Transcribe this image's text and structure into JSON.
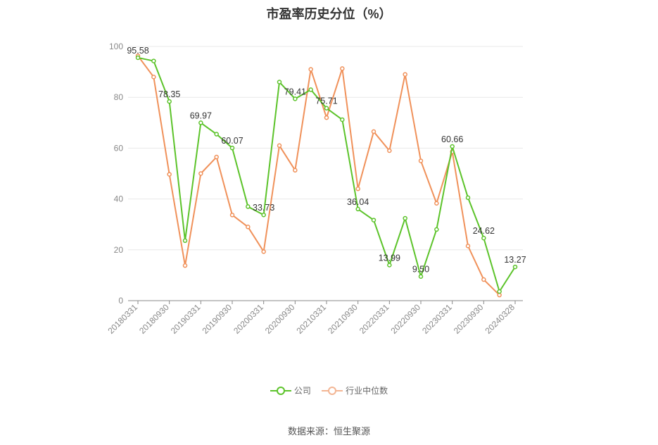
{
  "chart_data": {
    "type": "line",
    "title": "市盈率历史分位（%）",
    "ylim": [
      0,
      100
    ],
    "yticks": [
      0,
      20,
      40,
      60,
      80,
      100
    ],
    "x": [
      "20180331",
      "20180630",
      "20180930",
      "20181231",
      "20190331",
      "20190630",
      "20190930",
      "20191231",
      "20200331",
      "20200630",
      "20200930",
      "20201231",
      "20210331",
      "20210630",
      "20210930",
      "20211231",
      "20220331",
      "20220630",
      "20220930",
      "20221231",
      "20230331",
      "20230630",
      "20230930",
      "20231231",
      "20240328"
    ],
    "xtick_labels": [
      "20180331",
      "20180930",
      "20190331",
      "20190930",
      "20200331",
      "20200930",
      "20210331",
      "20210930",
      "20220331",
      "20220930",
      "20230331",
      "20230930",
      "20240328"
    ],
    "grid": true,
    "legend_position": "bottom",
    "series": [
      {
        "name": "公司",
        "color": "#5cc32a",
        "values": [
          95.58,
          94.3,
          78.35,
          23.6,
          69.97,
          65.5,
          60.07,
          37.0,
          33.73,
          86.0,
          79.41,
          83.0,
          75.71,
          71.2,
          36.04,
          31.7,
          13.99,
          32.4,
          9.5,
          28.0,
          60.66,
          40.5,
          24.62,
          3.6,
          13.27
        ],
        "labels": {
          "0": "95.58",
          "2": "78.35",
          "4": "69.97",
          "6": "60.07",
          "8": "33.73",
          "10": "79.41",
          "12": "75.71",
          "14": "36.04",
          "16": "13.99",
          "18": "9.50",
          "20": "60.66",
          "22": "24.62",
          "24": "13.27"
        }
      },
      {
        "name": "行业中位数",
        "color": "#f0915a",
        "values": [
          96.3,
          88.0,
          49.7,
          13.8,
          50.0,
          56.5,
          33.7,
          29.0,
          19.3,
          61.0,
          51.3,
          91.0,
          72.0,
          91.3,
          44.0,
          66.5,
          59.0,
          89.0,
          55.0,
          38.3,
          58.6,
          21.5,
          8.3,
          2.2,
          null
        ]
      }
    ]
  },
  "footer": {
    "source": "数据来源：恒生聚源"
  }
}
